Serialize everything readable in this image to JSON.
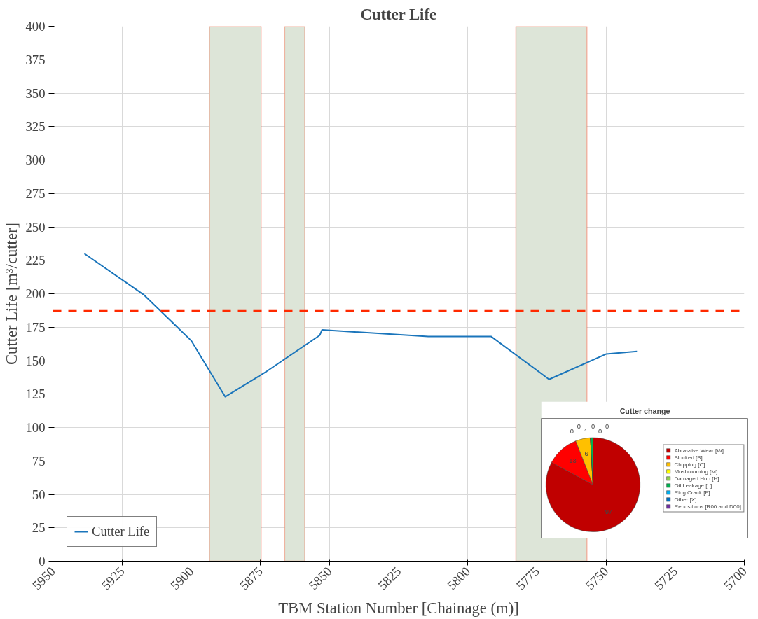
{
  "chart_data": [
    {
      "type": "line",
      "title": "Cutter Life",
      "xlabel": "TBM Station Number [Chainage (m)]",
      "ylabel": "Cutter Life [m³/cutter]",
      "x": [
        5938.6,
        5917,
        5900,
        5887.7,
        5872.7,
        5853.5,
        5852.7,
        5814.3,
        5791.5,
        5770.6,
        5749.9,
        5738.8
      ],
      "series": [
        {
          "name": "Cutter Life",
          "color": "#1a75bb",
          "values": [
            230,
            199,
            165,
            123,
            142,
            169,
            173,
            168,
            168,
            136,
            155,
            157
          ]
        }
      ],
      "xlim": [
        5950,
        5700
      ],
      "xticks": [
        5950,
        5925,
        5900,
        5875,
        5850,
        5825,
        5800,
        5775,
        5750,
        5725,
        5700
      ],
      "ylim": [
        0,
        400
      ],
      "yticks": [
        0,
        25,
        50,
        75,
        100,
        125,
        150,
        175,
        200,
        225,
        250,
        275,
        300,
        325,
        350,
        375,
        400
      ],
      "grid": true,
      "legend": "bottom left",
      "ref_lines": [
        {
          "axis": "y",
          "value": 187,
          "color": "#ff2a00",
          "line_style": "dashed"
        }
      ],
      "bands": [
        {
          "axis": "x",
          "from": 5893.4,
          "to": 5874.7,
          "color": "#dde5d8"
        },
        {
          "axis": "x",
          "from": 5866.2,
          "to": 5858.9,
          "color": "#dde5d8"
        },
        {
          "axis": "x",
          "from": 5782.6,
          "to": 5756.9,
          "color": "#dde5d8"
        }
      ]
    },
    {
      "type": "pie",
      "title": "Cutter change",
      "categories": [
        "Abrassive Wear [W]",
        "Blocked [B]",
        "Chipping [C]",
        "Mushrooming [M]",
        "Damaged Hub [H]",
        "Oil Leakage [L]",
        "Ring Crack [F]",
        "Other [X]",
        "Repositions [R00 and D00]"
      ],
      "values": [
        97,
        13,
        6,
        0,
        0,
        1,
        0,
        0,
        0
      ],
      "colors": [
        "#c00000",
        "#ff0000",
        "#ffc000",
        "#ffff00",
        "#92d050",
        "#00b050",
        "#00b0f0",
        "#0070c0",
        "#7030a0"
      ],
      "value_labels": [
        "97",
        "13",
        "6",
        "0",
        "0",
        "1",
        "0",
        "0",
        "0"
      ],
      "legend": "right"
    }
  ]
}
